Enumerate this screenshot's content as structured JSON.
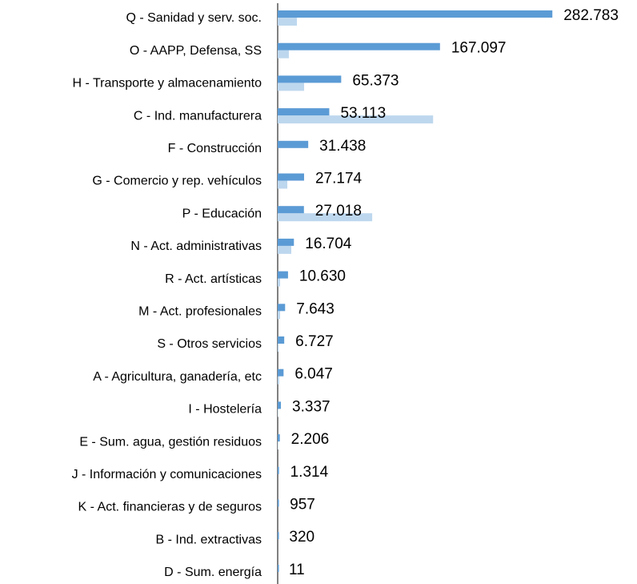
{
  "chart_data": {
    "type": "barh",
    "categories": [
      "Q - Sanidad y serv. soc.",
      "O - AAPP, Defensa, SS",
      "H - Transporte y almacenamiento",
      "C - Ind. manufacturera",
      "F - Construcción",
      "G - Comercio y rep. vehículos",
      "P - Educación",
      "N - Act. administrativas",
      "R - Act. artísticas",
      "M - Act. profesionales",
      "S - Otros servicios",
      "A - Agricultura, ganadería, etc",
      "I - Hostelería",
      "E - Sum. agua, gestión residuos",
      "J - Información y comunicaciones",
      "K - Act. financieras y de seguros",
      "B - Ind. extractivas",
      "D - Sum. energía"
    ],
    "series": [
      {
        "color": "#5b9bd5",
        "values": [
          282783,
          167097,
          65373,
          53113,
          31438,
          27174,
          27018,
          16704,
          10630,
          7643,
          6727,
          6047,
          3337,
          2206,
          1314,
          957,
          320,
          11
        ],
        "value_labels": [
          "282.783",
          "167.097",
          "65.373",
          "53.113",
          "31.438",
          "27.174",
          "27.018",
          "16.704",
          "10.630",
          "7.643",
          "6.727",
          "6.047",
          "3.337",
          "2.206",
          "1.314",
          "957",
          "320",
          "11"
        ]
      },
      {
        "color": "#bdd7ee",
        "values": [
          19800,
          11500,
          27200,
          160000,
          0,
          9900,
          97300,
          14000,
          2500,
          2500,
          1000,
          1500,
          500,
          500,
          0,
          0,
          0,
          0
        ]
      }
    ],
    "xlim": [
      0,
      290000
    ]
  }
}
